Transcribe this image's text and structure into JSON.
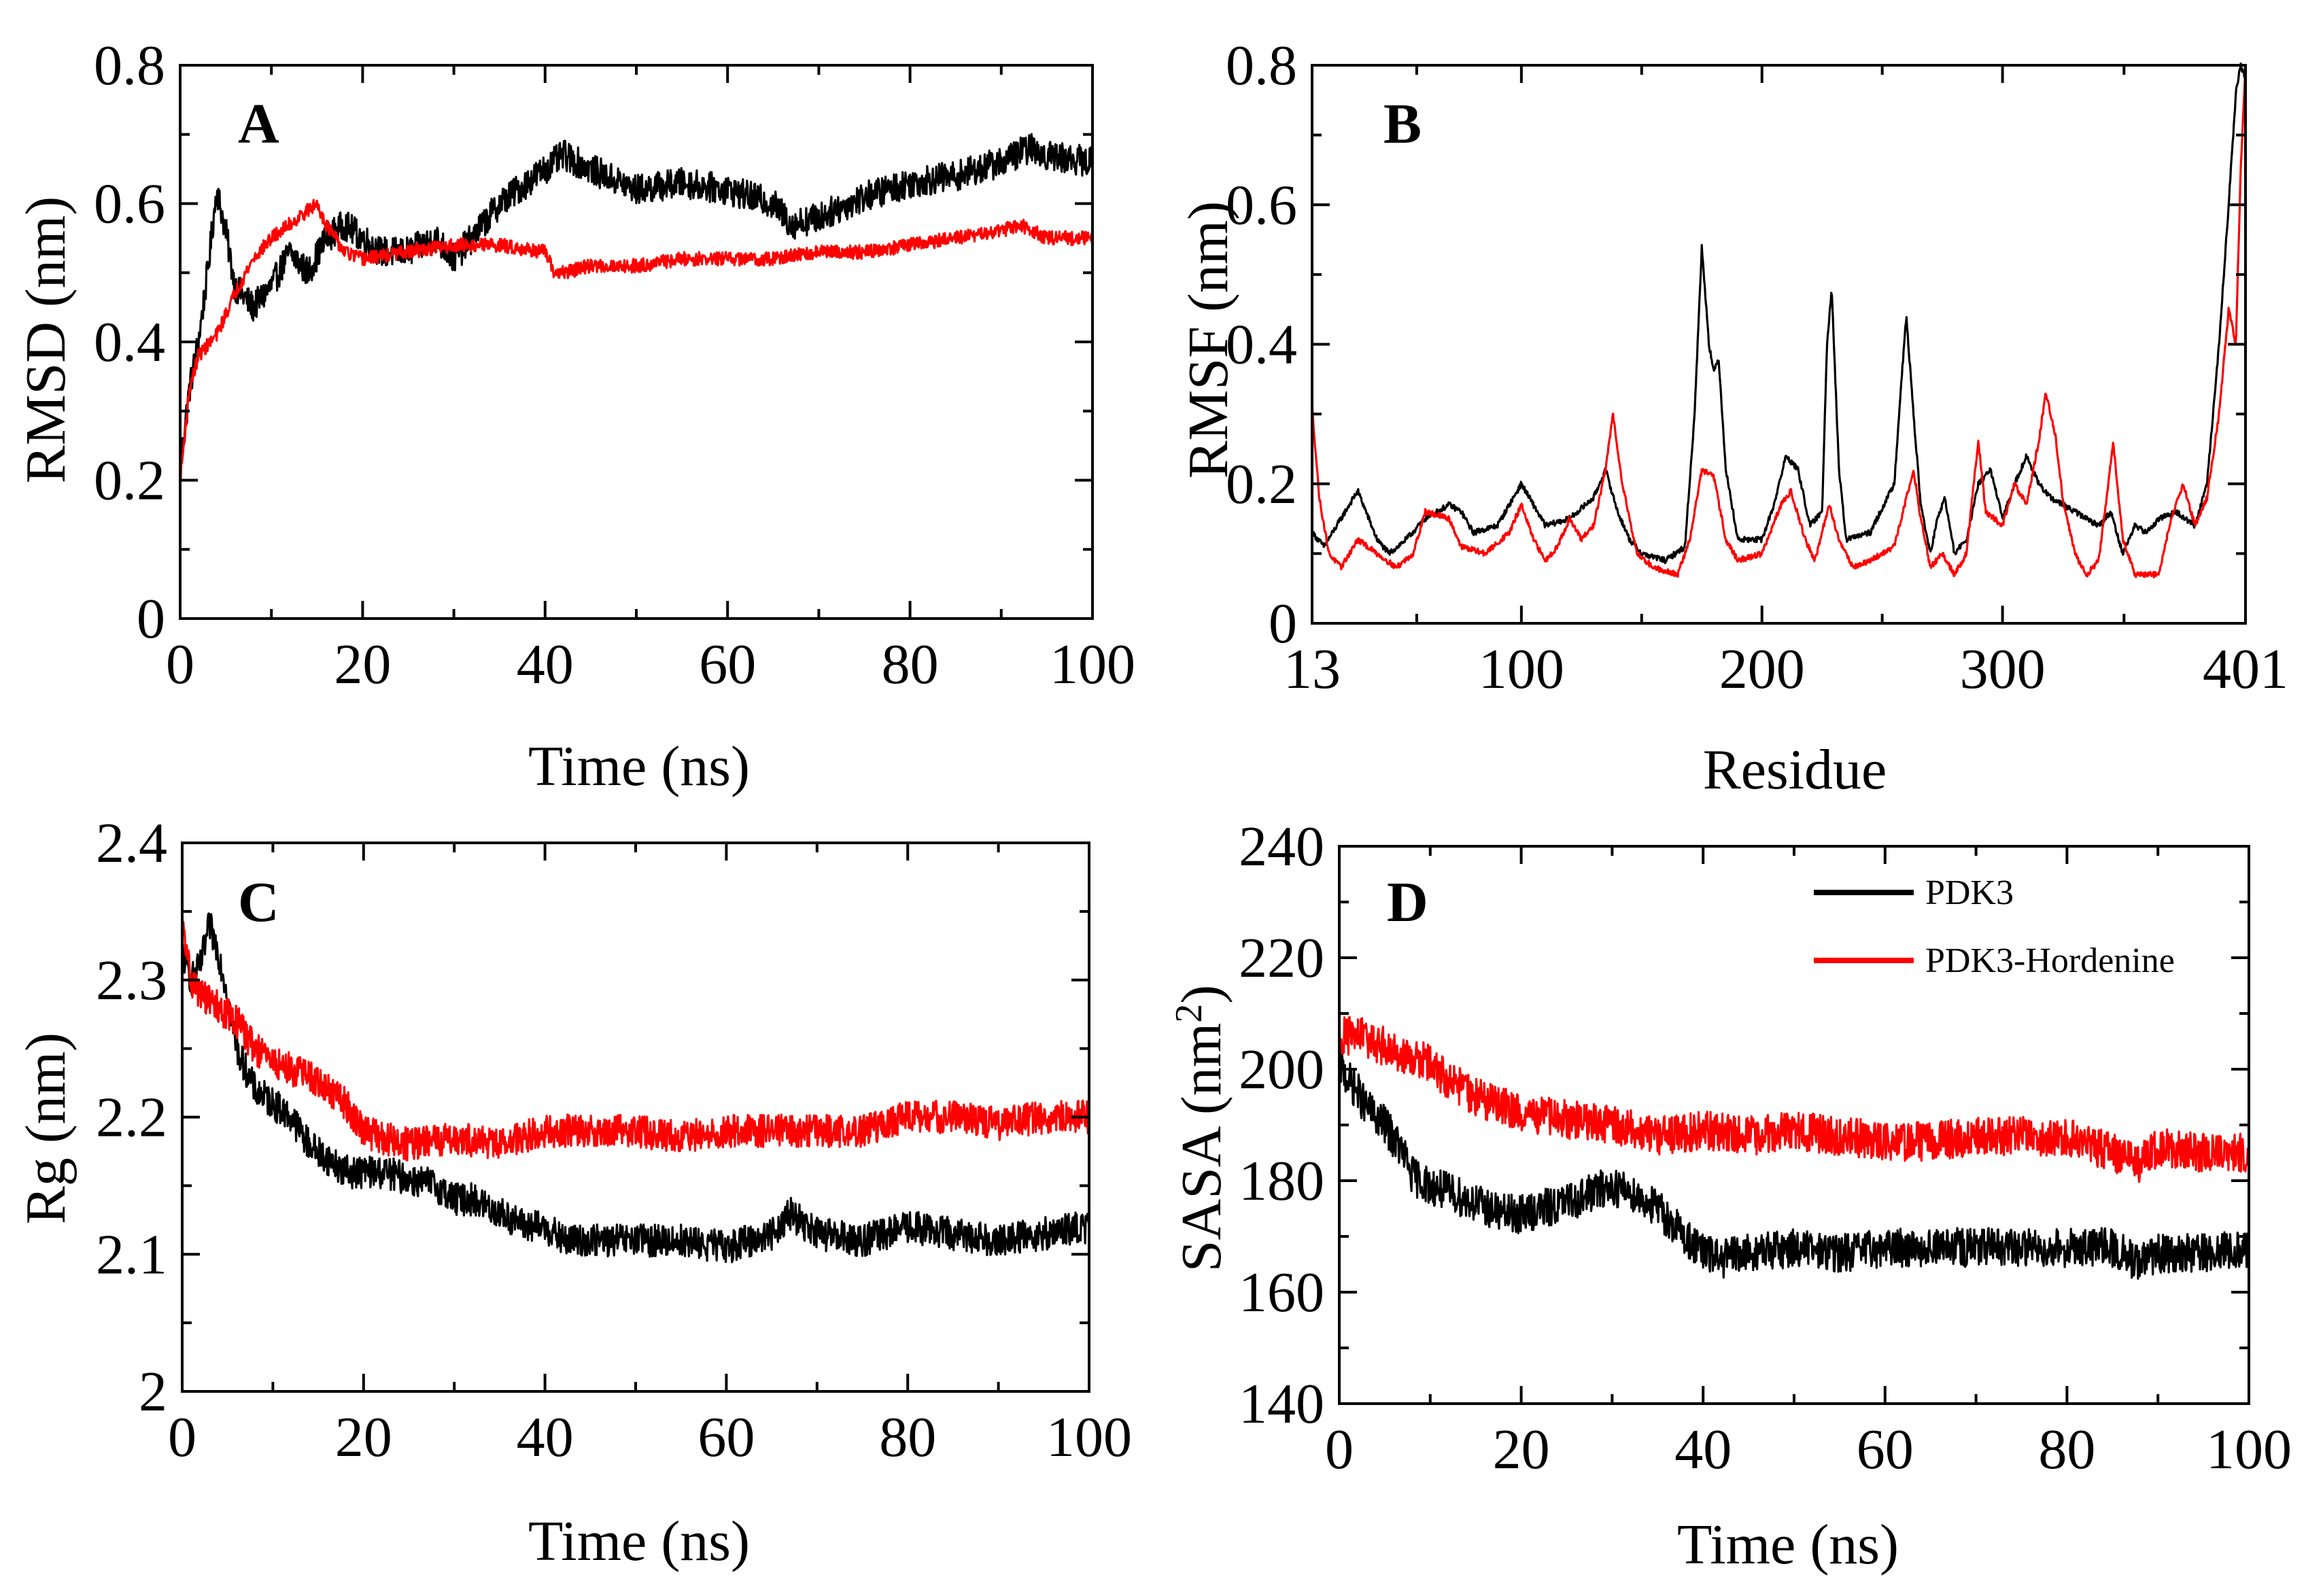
{
  "colors": {
    "pdk3": "#000000",
    "pdk3_hordenine": "#ff0000",
    "axis": "#000000"
  },
  "chart_data": [
    {
      "type": "line",
      "panel": "A",
      "xlabel": "Time (ns)",
      "ylabel": "RMSD (nm)",
      "xlim": [
        0,
        100
      ],
      "ylim": [
        0,
        0.8
      ],
      "xticks": [
        0,
        20,
        40,
        60,
        80,
        100
      ],
      "yticks": [
        0,
        0.2,
        0.4,
        0.6,
        0.8
      ],
      "xtick_labels": [
        "0",
        "20",
        "40",
        "60",
        "80",
        "100"
      ],
      "ytick_labels": [
        "0",
        "0.2",
        "0.4",
        "0.6",
        "0.8"
      ],
      "noise": [
        0.022,
        0.01
      ],
      "series": [
        {
          "name": "PDK3",
          "color": "#000000",
          "x": [
            0,
            1,
            2,
            3,
            4,
            5,
            6,
            8,
            10,
            12,
            14,
            16,
            18,
            20,
            22,
            25,
            28,
            30,
            32,
            35,
            38,
            40,
            42,
            45,
            50,
            55,
            60,
            65,
            67,
            70,
            75,
            80,
            85,
            90,
            93,
            95,
            100
          ],
          "y": [
            0.22,
            0.33,
            0.4,
            0.5,
            0.62,
            0.56,
            0.48,
            0.45,
            0.48,
            0.53,
            0.5,
            0.55,
            0.57,
            0.55,
            0.53,
            0.53,
            0.55,
            0.52,
            0.55,
            0.6,
            0.63,
            0.65,
            0.67,
            0.65,
            0.62,
            0.63,
            0.62,
            0.6,
            0.57,
            0.58,
            0.61,
            0.63,
            0.64,
            0.66,
            0.68,
            0.67,
            0.66
          ]
        },
        {
          "name": "PDK3-Hordenine",
          "color": "#ff0000",
          "x": [
            0,
            1,
            2,
            4,
            6,
            8,
            10,
            12,
            14,
            15,
            16,
            18,
            20,
            25,
            30,
            35,
            40,
            41,
            42,
            45,
            50,
            55,
            60,
            65,
            70,
            75,
            80,
            85,
            90,
            92,
            95,
            100
          ],
          "y": [
            0.2,
            0.33,
            0.38,
            0.41,
            0.47,
            0.52,
            0.55,
            0.57,
            0.59,
            0.6,
            0.57,
            0.53,
            0.52,
            0.53,
            0.54,
            0.54,
            0.53,
            0.5,
            0.5,
            0.51,
            0.51,
            0.52,
            0.52,
            0.52,
            0.53,
            0.53,
            0.54,
            0.55,
            0.56,
            0.57,
            0.55,
            0.55
          ]
        }
      ]
    },
    {
      "type": "line",
      "panel": "B",
      "xlabel": "Residue",
      "ylabel": "RMSF (nm)",
      "xlim": [
        13,
        401
      ],
      "ylim": [
        0,
        0.8
      ],
      "xticks": [
        13,
        100,
        200,
        300,
        401
      ],
      "yticks": [
        0,
        0.2,
        0.4,
        0.6,
        0.8
      ],
      "xtick_labels": [
        "13",
        "100",
        "200",
        "300",
        "401"
      ],
      "ytick_labels": [
        "0",
        "0.2",
        "0.4",
        "0.6",
        "0.8"
      ],
      "noise": [
        0.004,
        0.004
      ],
      "series": [
        {
          "name": "PDK3",
          "color": "#000000",
          "x": [
            13,
            18,
            25,
            32,
            40,
            45,
            52,
            60,
            70,
            75,
            80,
            90,
            95,
            100,
            105,
            110,
            120,
            130,
            135,
            140,
            145,
            150,
            160,
            168,
            172,
            175,
            178,
            180,
            182,
            185,
            190,
            200,
            205,
            210,
            215,
            220,
            225,
            227,
            229,
            232,
            235,
            245,
            255,
            258,
            260,
            263,
            266,
            270,
            273,
            276,
            280,
            285,
            290,
            295,
            300,
            305,
            310,
            315,
            320,
            330,
            340,
            345,
            350,
            355,
            360,
            365,
            372,
            380,
            385,
            390,
            394,
            397,
            399,
            401
          ],
          "y": [
            0.13,
            0.11,
            0.15,
            0.19,
            0.12,
            0.1,
            0.12,
            0.15,
            0.17,
            0.16,
            0.13,
            0.14,
            0.17,
            0.2,
            0.17,
            0.14,
            0.15,
            0.18,
            0.22,
            0.16,
            0.12,
            0.1,
            0.09,
            0.11,
            0.3,
            0.54,
            0.4,
            0.36,
            0.38,
            0.22,
            0.12,
            0.12,
            0.17,
            0.24,
            0.22,
            0.14,
            0.16,
            0.4,
            0.48,
            0.22,
            0.12,
            0.13,
            0.2,
            0.35,
            0.44,
            0.3,
            0.17,
            0.1,
            0.15,
            0.18,
            0.1,
            0.12,
            0.2,
            0.22,
            0.15,
            0.2,
            0.24,
            0.2,
            0.18,
            0.16,
            0.14,
            0.16,
            0.1,
            0.14,
            0.13,
            0.15,
            0.16,
            0.14,
            0.2,
            0.4,
            0.6,
            0.76,
            0.8,
            0.78
          ]
        },
        {
          "name": "PDK3-Hordenine",
          "color": "#ff0000",
          "x": [
            13,
            16,
            20,
            25,
            32,
            40,
            48,
            55,
            60,
            70,
            75,
            85,
            95,
            100,
            105,
            110,
            115,
            120,
            125,
            130,
            135,
            138,
            142,
            148,
            155,
            165,
            170,
            175,
            180,
            185,
            190,
            200,
            208,
            212,
            218,
            222,
            228,
            232,
            238,
            245,
            255,
            260,
            263,
            266,
            270,
            275,
            280,
            285,
            288,
            290,
            293,
            300,
            305,
            310,
            315,
            318,
            322,
            325,
            330,
            335,
            340,
            344,
            346,
            350,
            355,
            365,
            370,
            375,
            380,
            385,
            390,
            394,
            397,
            399,
            401
          ],
          "y": [
            0.31,
            0.18,
            0.1,
            0.08,
            0.12,
            0.1,
            0.08,
            0.1,
            0.16,
            0.15,
            0.11,
            0.1,
            0.13,
            0.17,
            0.12,
            0.09,
            0.11,
            0.15,
            0.12,
            0.14,
            0.22,
            0.3,
            0.2,
            0.1,
            0.08,
            0.07,
            0.12,
            0.22,
            0.21,
            0.12,
            0.09,
            0.1,
            0.17,
            0.19,
            0.12,
            0.09,
            0.17,
            0.12,
            0.08,
            0.09,
            0.11,
            0.18,
            0.22,
            0.15,
            0.08,
            0.1,
            0.07,
            0.1,
            0.2,
            0.26,
            0.16,
            0.14,
            0.2,
            0.17,
            0.26,
            0.33,
            0.27,
            0.18,
            0.1,
            0.07,
            0.09,
            0.2,
            0.26,
            0.12,
            0.07,
            0.07,
            0.15,
            0.2,
            0.14,
            0.18,
            0.3,
            0.45,
            0.4,
            0.65,
            0.8
          ]
        }
      ]
    },
    {
      "type": "line",
      "panel": "C",
      "xlabel": "Time (ns)",
      "ylabel": "Rg (nm)",
      "xlim": [
        0,
        100
      ],
      "ylim": [
        2.0,
        2.4
      ],
      "xticks": [
        0,
        20,
        40,
        60,
        80,
        100
      ],
      "yticks": [
        2.0,
        2.1,
        2.2,
        2.3,
        2.4
      ],
      "xtick_labels": [
        "0",
        "20",
        "40",
        "60",
        "80",
        "100"
      ],
      "ytick_labels": [
        "2",
        "2.1",
        "2.2",
        "2.3",
        "2.4"
      ],
      "noise": [
        0.012,
        0.012
      ],
      "series": [
        {
          "name": "PDK3",
          "color": "#000000",
          "x": [
            0,
            1,
            2,
            3,
            4,
            5,
            6,
            8,
            10,
            12,
            14,
            16,
            18,
            20,
            22,
            25,
            28,
            30,
            32,
            35,
            38,
            40,
            42,
            45,
            50,
            55,
            60,
            65,
            67,
            70,
            75,
            80,
            85,
            90,
            95,
            100
          ],
          "y": [
            2.32,
            2.3,
            2.31,
            2.34,
            2.32,
            2.29,
            2.25,
            2.22,
            2.21,
            2.2,
            2.18,
            2.17,
            2.16,
            2.16,
            2.16,
            2.155,
            2.15,
            2.14,
            2.14,
            2.13,
            2.12,
            2.12,
            2.11,
            2.11,
            2.11,
            2.11,
            2.105,
            2.115,
            2.13,
            2.115,
            2.11,
            2.12,
            2.115,
            2.11,
            2.115,
            2.12
          ]
        },
        {
          "name": "PDK3-Hordenine",
          "color": "#ff0000",
          "x": [
            0,
            1,
            2,
            4,
            6,
            8,
            10,
            12,
            14,
            16,
            18,
            20,
            22,
            25,
            30,
            35,
            40,
            45,
            50,
            55,
            60,
            65,
            70,
            75,
            80,
            85,
            90,
            95,
            100
          ],
          "y": [
            2.34,
            2.3,
            2.29,
            2.28,
            2.27,
            2.25,
            2.24,
            2.235,
            2.23,
            2.22,
            2.21,
            2.19,
            2.185,
            2.18,
            2.185,
            2.18,
            2.19,
            2.19,
            2.19,
            2.185,
            2.19,
            2.19,
            2.19,
            2.19,
            2.2,
            2.2,
            2.195,
            2.2,
            2.2
          ]
        }
      ]
    },
    {
      "type": "line",
      "panel": "D",
      "xlabel": "Time (ns)",
      "ylabel": "SASA (nm²)",
      "ylabel_main": "SASA (nm",
      "ylabel_sup": "2",
      "ylabel_end": ")",
      "xlim": [
        0,
        100
      ],
      "ylim": [
        140,
        240
      ],
      "xticks": [
        0,
        20,
        40,
        60,
        80,
        100
      ],
      "yticks": [
        140,
        160,
        180,
        200,
        220,
        240
      ],
      "xtick_labels": [
        "0",
        "20",
        "40",
        "60",
        "80",
        "100"
      ],
      "ytick_labels": [
        "140",
        "160",
        "180",
        "200",
        "220",
        "240"
      ],
      "noise": [
        3.5,
        3.5
      ],
      "legend": {
        "position": "top-right",
        "entries": [
          "PDK3",
          "PDK3-Hordenine"
        ]
      },
      "series": [
        {
          "name": "PDK3",
          "color": "#000000",
          "x": [
            0,
            1,
            2,
            3,
            5,
            7,
            8,
            10,
            12,
            15,
            18,
            20,
            25,
            28,
            30,
            32,
            35,
            38,
            40,
            42,
            45,
            50,
            55,
            60,
            65,
            70,
            75,
            80,
            85,
            88,
            90,
            95,
            100
          ],
          "y": [
            201,
            198,
            196,
            193,
            190,
            185,
            181,
            179,
            178,
            176,
            174,
            174,
            176,
            178,
            179,
            178,
            175,
            170,
            167,
            166,
            167,
            168,
            167,
            168,
            168,
            168,
            168,
            168,
            168,
            165,
            167,
            167,
            168
          ]
        },
        {
          "name": "PDK3-Hordenine",
          "color": "#ff0000",
          "x": [
            0,
            2,
            5,
            8,
            10,
            12,
            15,
            20,
            25,
            30,
            35,
            40,
            45,
            50,
            55,
            60,
            65,
            70,
            75,
            80,
            85,
            88,
            90,
            95,
            100
          ],
          "y": [
            206,
            206,
            204,
            202,
            201,
            198,
            195,
            192,
            191,
            190,
            188,
            189,
            188,
            189,
            188,
            187,
            187,
            188,
            188,
            188,
            185,
            183,
            186,
            185,
            185
          ]
        }
      ]
    }
  ]
}
